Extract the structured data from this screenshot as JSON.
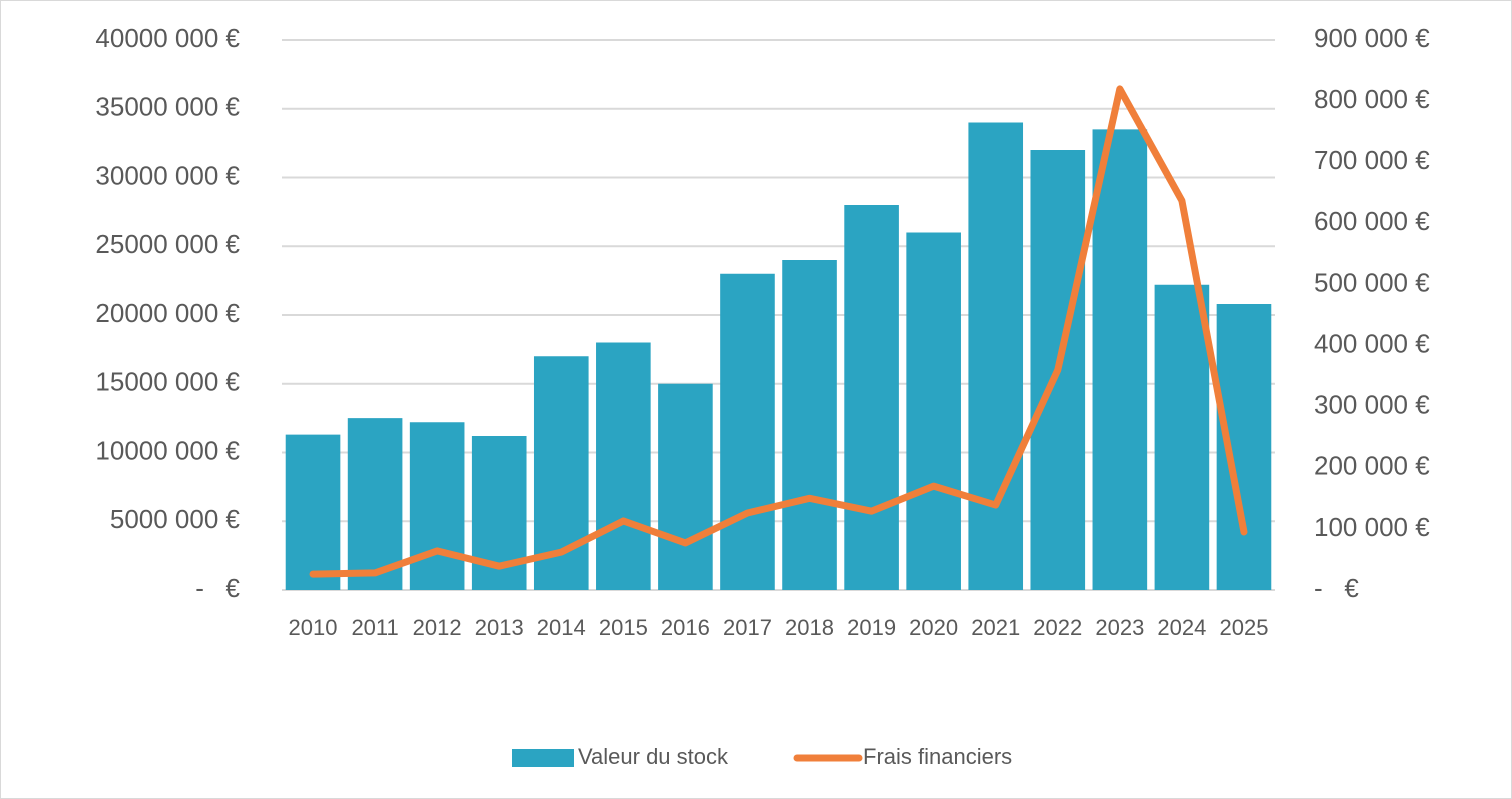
{
  "chart_data": {
    "type": "bar",
    "categories": [
      "2010",
      "2011",
      "2012",
      "2013",
      "2014",
      "2015",
      "2016",
      "2017",
      "2018",
      "2019",
      "2020",
      "2021",
      "2022",
      "2023",
      "2024",
      "2025"
    ],
    "series": [
      {
        "name": "Valeur du stock",
        "type": "bar",
        "color": "#2ba4c2",
        "values": [
          11300000,
          12500000,
          12200000,
          11200000,
          17000000,
          18000000,
          15000000,
          23000000,
          24000000,
          28000000,
          26000000,
          34000000,
          32000000,
          33500000,
          22200000,
          20800000
        ]
      },
      {
        "name": "Frais financiers",
        "type": "line",
        "axis": "y2",
        "color": "#f07f3a",
        "values": [
          26000,
          28000,
          64000,
          39000,
          62000,
          113000,
          77000,
          126000,
          150000,
          129000,
          170000,
          139000,
          360000,
          820000,
          637000,
          95000
        ]
      }
    ],
    "ylim": [
      0,
      40000000
    ],
    "yticks": [
      {
        "value": 0,
        "label": "-   €"
      },
      {
        "value": 5000000,
        "label": "5000 000 €"
      },
      {
        "value": 10000000,
        "label": "10000 000 €"
      },
      {
        "value": 15000000,
        "label": "15000 000 €"
      },
      {
        "value": 20000000,
        "label": "20000 000 €"
      },
      {
        "value": 25000000,
        "label": "25000 000 €"
      },
      {
        "value": 30000000,
        "label": "30000 000 €"
      },
      {
        "value": 35000000,
        "label": "35000 000 €"
      },
      {
        "value": 40000000,
        "label": "40000 000 €"
      }
    ],
    "y2lim": [
      0,
      900000
    ],
    "y2ticks": [
      {
        "value": 0,
        "label": "-   €"
      },
      {
        "value": 100000,
        "label": "100 000 €"
      },
      {
        "value": 200000,
        "label": "200 000 €"
      },
      {
        "value": 300000,
        "label": "300 000 €"
      },
      {
        "value": 400000,
        "label": "400 000 €"
      },
      {
        "value": 500000,
        "label": "500 000 €"
      },
      {
        "value": 600000,
        "label": "600 000 €"
      },
      {
        "value": 700000,
        "label": "700 000 €"
      },
      {
        "value": 800000,
        "label": "800 000 €"
      },
      {
        "value": 900000,
        "label": "900 000 €"
      }
    ],
    "grid": true,
    "legend": "bottom"
  }
}
